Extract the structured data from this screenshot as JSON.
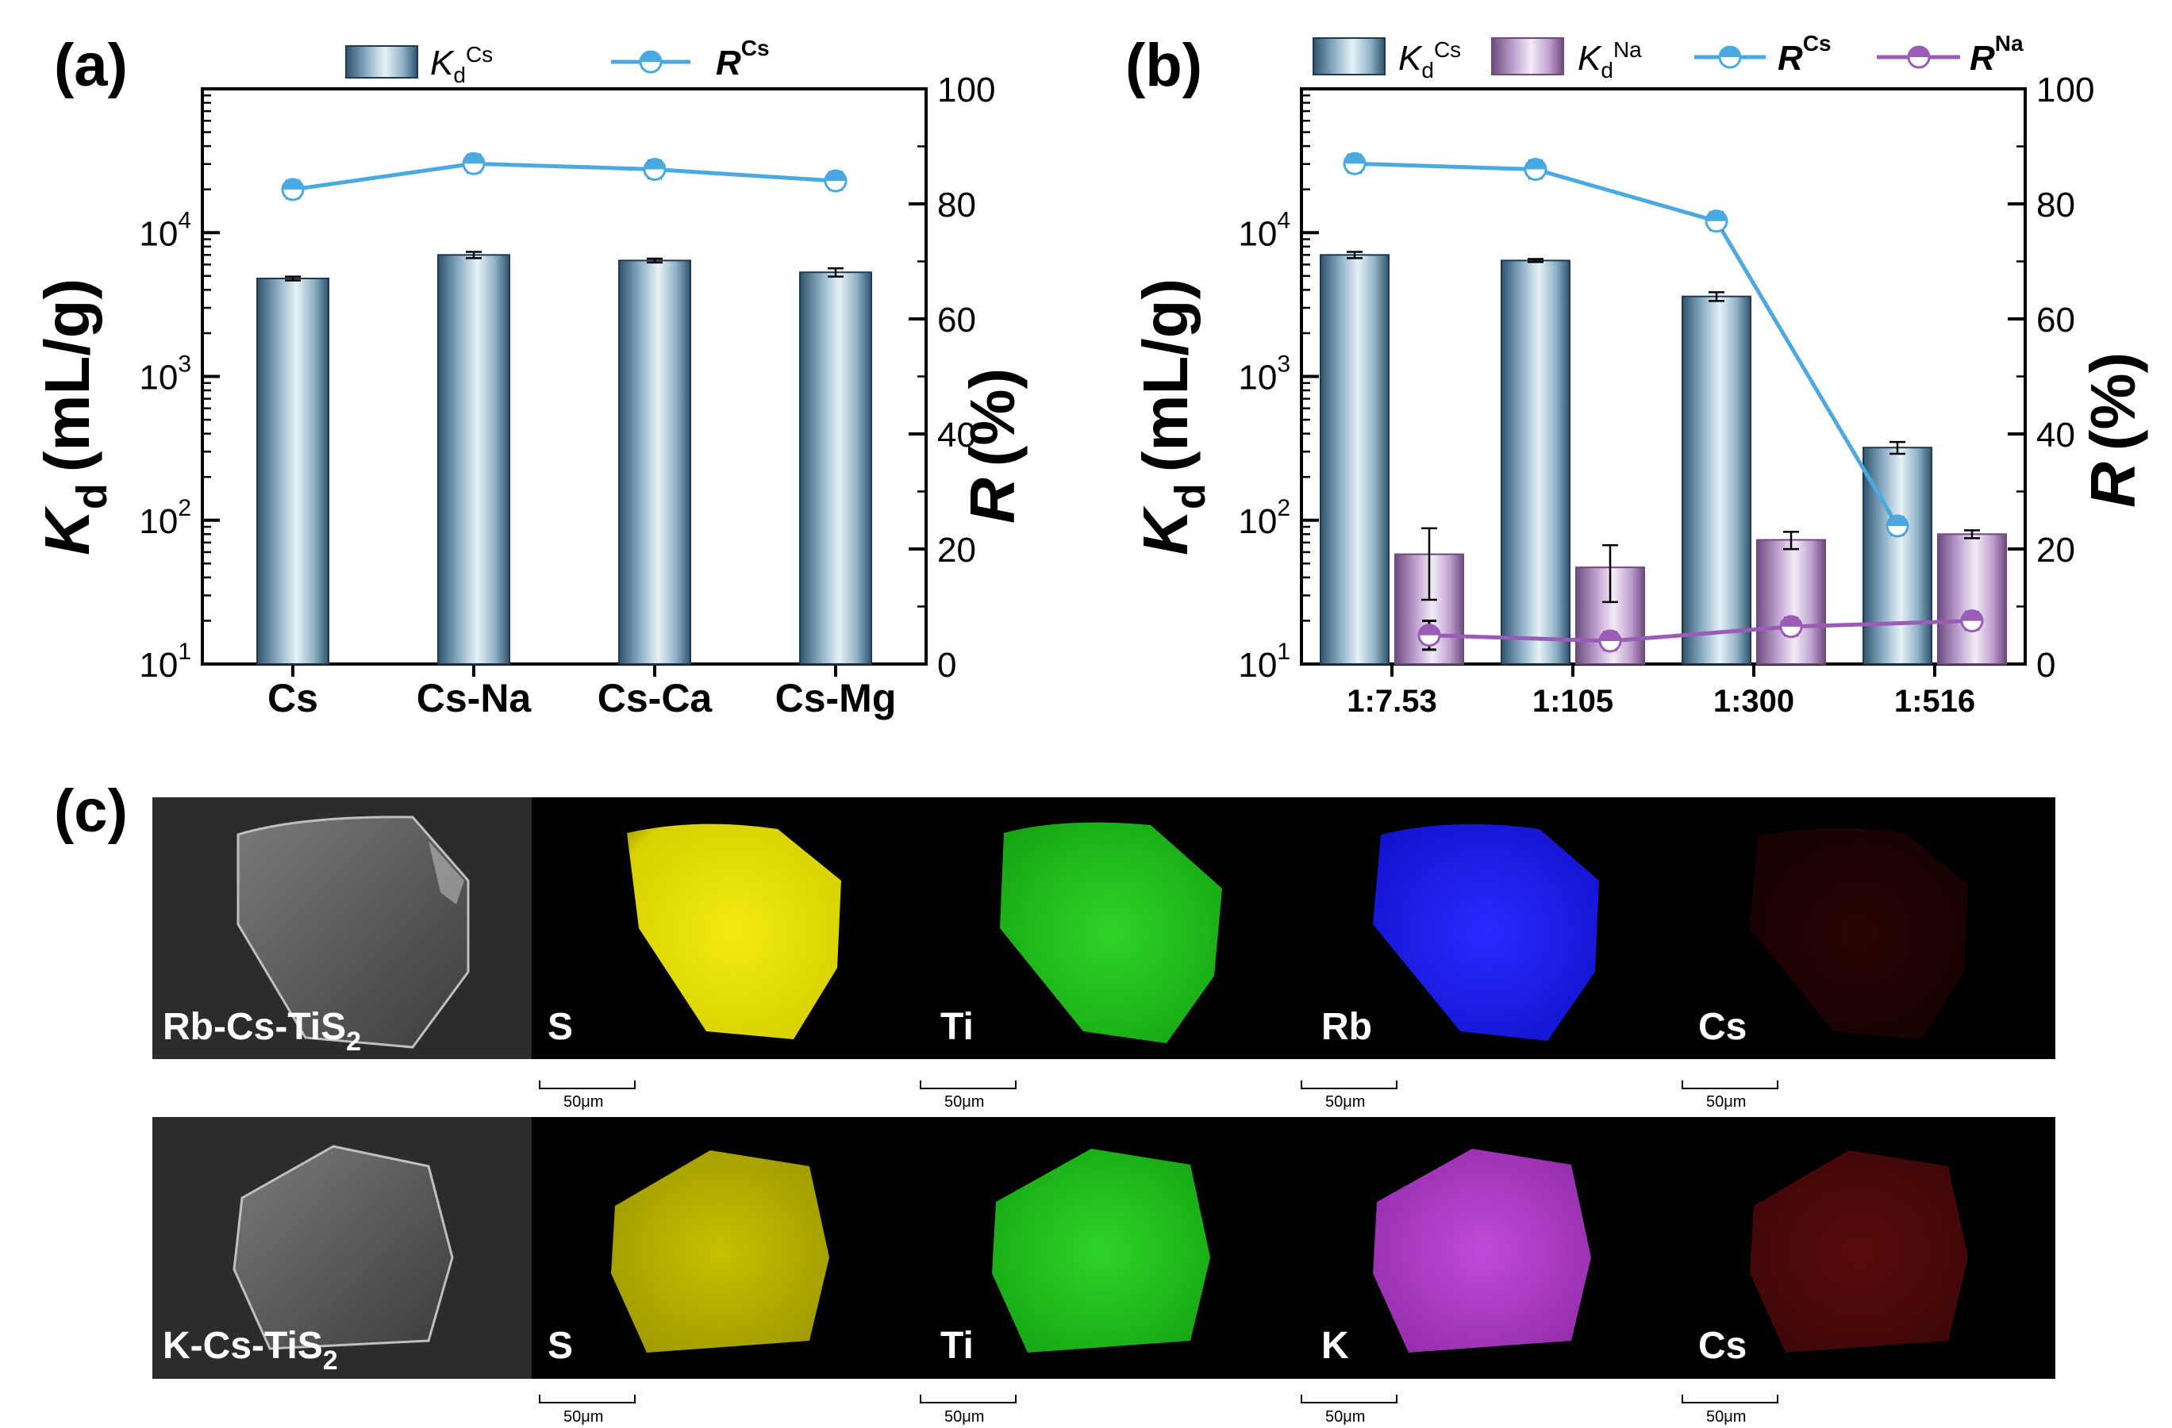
{
  "chart_data": [
    {
      "panel_label": "(a)",
      "type": "bar+line",
      "y_left_label": "K",
      "y_left_label_sub": "d",
      "y_left_unit": "(mL/g)",
      "y_left_scale": "log",
      "y_left_range": [
        10,
        100000
      ],
      "y_left_ticks": [
        {
          "base": "10",
          "exp": "1",
          "value": 10
        },
        {
          "base": "10",
          "exp": "2",
          "value": 100
        },
        {
          "base": "10",
          "exp": "3",
          "value": 1000
        },
        {
          "base": "10",
          "exp": "4",
          "value": 10000
        }
      ],
      "y_right_label": "R",
      "y_right_unit": "(%)",
      "y_right_range": [
        0,
        100
      ],
      "y_right_ticks": [
        "0",
        "20",
        "40",
        "60",
        "80",
        "100"
      ],
      "categories": [
        "Cs",
        "Cs-Na",
        "Cs-Ca",
        "Cs-Mg"
      ],
      "bar_series": [
        {
          "name": "K",
          "sub": "d",
          "sup": "Cs",
          "values": [
            4800,
            7000,
            6400,
            5300
          ],
          "errors": [
            150,
            350,
            200,
            350
          ]
        }
      ],
      "line_series": [
        {
          "name": "R",
          "sup": "Cs",
          "values": [
            82.5,
            87.0,
            86.0,
            84.0
          ],
          "errors": [
            1.5,
            1.5,
            1.5,
            1.5
          ]
        }
      ],
      "legend_position": "top"
    },
    {
      "panel_label": "(b)",
      "type": "bar+line",
      "y_left_label": "K",
      "y_left_label_sub": "d",
      "y_left_unit": "(mL/g)",
      "y_left_scale": "log",
      "y_left_range": [
        10,
        100000
      ],
      "y_left_ticks": [
        {
          "base": "10",
          "exp": "1",
          "value": 10
        },
        {
          "base": "10",
          "exp": "2",
          "value": 100
        },
        {
          "base": "10",
          "exp": "3",
          "value": 1000
        },
        {
          "base": "10",
          "exp": "4",
          "value": 10000
        }
      ],
      "y_right_label": "R",
      "y_right_unit": "(%)",
      "y_right_range": [
        0,
        100
      ],
      "y_right_ticks": [
        "0",
        "20",
        "40",
        "60",
        "80",
        "100"
      ],
      "categories": [
        "1:7.53",
        "1:105",
        "1:300",
        "1:516"
      ],
      "bar_series": [
        {
          "name": "K",
          "sub": "d",
          "sup": "Cs",
          "values": [
            7000,
            6400,
            3600,
            320
          ],
          "errors": [
            350,
            150,
            250,
            30
          ]
        },
        {
          "name": "K",
          "sub": "d",
          "sup": "Na",
          "values": [
            58,
            47,
            73,
            80
          ],
          "errors": [
            30,
            20,
            10,
            5
          ]
        }
      ],
      "line_series": [
        {
          "name": "R",
          "sup": "Cs",
          "values": [
            87.0,
            86.0,
            77.0,
            24.0
          ],
          "errors": [
            1.5,
            1.5,
            1.5,
            1.5
          ]
        },
        {
          "name": "R",
          "sup": "Na",
          "values": [
            5.0,
            4.0,
            6.5,
            7.5
          ],
          "errors": [
            2.5,
            1.5,
            1.5,
            1.5
          ]
        }
      ],
      "legend_position": "top"
    }
  ],
  "figure_c": {
    "panel_label": "(c)",
    "rows": [
      {
        "sample": "Rb-Cs-TiS",
        "sample_sub": "2",
        "maps": [
          {
            "element": "S",
            "color": "#e8e000"
          },
          {
            "element": "Ti",
            "color": "#22c81e"
          },
          {
            "element": "Rb",
            "color": "#1a1af5"
          },
          {
            "element": "Cs",
            "color": "#3a0606"
          }
        ],
        "scale_bar": "50μm"
      },
      {
        "sample": "K-Cs-TiS",
        "sample_sub": "2",
        "maps": [
          {
            "element": "S",
            "color": "#bdb500"
          },
          {
            "element": "Ti",
            "color": "#22c81e"
          },
          {
            "element": "K",
            "color": "#b03ac8"
          },
          {
            "element": "Cs",
            "color": "#6a0e0e"
          }
        ],
        "scale_bar": "50μm"
      }
    ]
  },
  "colors": {
    "bar_cs": "#6f93ab",
    "bar_na": "#b48fc2",
    "line_cs": "#4aa9e0",
    "line_na": "#9a5cb6"
  }
}
